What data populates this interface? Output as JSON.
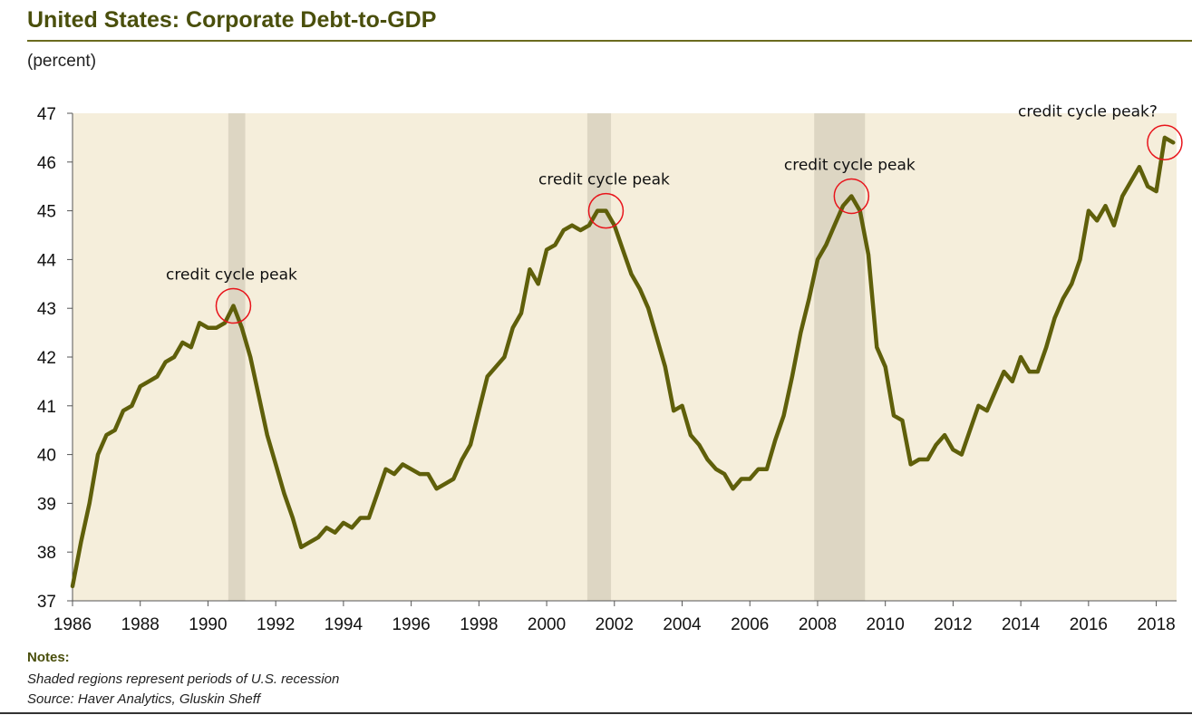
{
  "title": "United States: Corporate Debt-to-GDP",
  "subtitle": "(percent)",
  "notes": {
    "heading": "Notes:",
    "line1": "Shaded regions represent periods of U.S. recession",
    "line2": "Source: Haver Analytics, Gluskin Sheff"
  },
  "colors": {
    "line": "#5f5f0a",
    "plot_bg": "#f5eedb",
    "recession": "#ddd6c3",
    "annotation_circle": "#e8141b",
    "title": "#4a4f0c"
  },
  "chart_data": {
    "type": "line",
    "title": "United States: Corporate Debt-to-GDP",
    "ylabel": "(percent)",
    "xlabel": "",
    "xlim": [
      1986,
      2018.6
    ],
    "ylim": [
      37,
      47
    ],
    "x_ticks": [
      "1986",
      "1988",
      "1990",
      "1992",
      "1994",
      "1996",
      "1998",
      "2000",
      "2002",
      "2004",
      "2006",
      "2008",
      "2010",
      "2012",
      "2014",
      "2016",
      "2018"
    ],
    "y_ticks": [
      "37",
      "38",
      "39",
      "40",
      "41",
      "42",
      "43",
      "44",
      "45",
      "46",
      "47"
    ],
    "recessions": [
      [
        1990.6,
        1991.1
      ],
      [
        2001.2,
        2001.9
      ],
      [
        2007.9,
        2009.4
      ]
    ],
    "annotations": [
      {
        "text": "credit cycle peak",
        "x": 1990.75,
        "y": 43.05
      },
      {
        "text": "credit cycle peak",
        "x": 2001.75,
        "y": 45.0
      },
      {
        "text": "credit cycle peak",
        "x": 2009.0,
        "y": 45.3
      },
      {
        "text": "credit cycle peak?",
        "x": 2018.25,
        "y": 46.4
      }
    ],
    "series": [
      {
        "name": "Corporate Debt-to-GDP",
        "x": [
          1986.0,
          1986.25,
          1986.5,
          1986.75,
          1987.0,
          1987.25,
          1987.5,
          1987.75,
          1988.0,
          1988.25,
          1988.5,
          1988.75,
          1989.0,
          1989.25,
          1989.5,
          1989.75,
          1990.0,
          1990.25,
          1990.5,
          1990.75,
          1991.0,
          1991.25,
          1991.5,
          1991.75,
          1992.0,
          1992.25,
          1992.5,
          1992.75,
          1993.0,
          1993.25,
          1993.5,
          1993.75,
          1994.0,
          1994.25,
          1994.5,
          1994.75,
          1995.0,
          1995.25,
          1995.5,
          1995.75,
          1996.0,
          1996.25,
          1996.5,
          1996.75,
          1997.0,
          1997.25,
          1997.5,
          1997.75,
          1998.0,
          1998.25,
          1998.5,
          1998.75,
          1999.0,
          1999.25,
          1999.5,
          1999.75,
          2000.0,
          2000.25,
          2000.5,
          2000.75,
          2001.0,
          2001.25,
          2001.5,
          2001.75,
          2002.0,
          2002.25,
          2002.5,
          2002.75,
          2003.0,
          2003.25,
          2003.5,
          2003.75,
          2004.0,
          2004.25,
          2004.5,
          2004.75,
          2005.0,
          2005.25,
          2005.5,
          2005.75,
          2006.0,
          2006.25,
          2006.5,
          2006.75,
          2007.0,
          2007.25,
          2007.5,
          2007.75,
          2008.0,
          2008.25,
          2008.5,
          2008.75,
          2009.0,
          2009.25,
          2009.5,
          2009.75,
          2010.0,
          2010.25,
          2010.5,
          2010.75,
          2011.0,
          2011.25,
          2011.5,
          2011.75,
          2012.0,
          2012.25,
          2012.5,
          2012.75,
          2013.0,
          2013.25,
          2013.5,
          2013.75,
          2014.0,
          2014.25,
          2014.5,
          2014.75,
          2015.0,
          2015.25,
          2015.5,
          2015.75,
          2016.0,
          2016.25,
          2016.5,
          2016.75,
          2017.0,
          2017.25,
          2017.5,
          2017.75,
          2018.0,
          2018.25,
          2018.5
        ],
        "values": [
          37.3,
          38.2,
          39.0,
          40.0,
          40.4,
          40.5,
          40.9,
          41.0,
          41.4,
          41.5,
          41.6,
          41.9,
          42.0,
          42.3,
          42.2,
          42.7,
          42.6,
          42.6,
          42.7,
          43.05,
          42.6,
          42.0,
          41.2,
          40.4,
          39.8,
          39.2,
          38.7,
          38.1,
          38.2,
          38.3,
          38.5,
          38.4,
          38.6,
          38.5,
          38.7,
          38.7,
          39.2,
          39.7,
          39.6,
          39.8,
          39.7,
          39.6,
          39.6,
          39.3,
          39.4,
          39.5,
          39.9,
          40.2,
          40.9,
          41.6,
          41.8,
          42.0,
          42.6,
          42.9,
          43.8,
          43.5,
          44.2,
          44.3,
          44.6,
          44.7,
          44.6,
          44.7,
          45.0,
          45.0,
          44.7,
          44.2,
          43.7,
          43.4,
          43.0,
          42.4,
          41.8,
          40.9,
          41.0,
          40.4,
          40.2,
          39.9,
          39.7,
          39.6,
          39.3,
          39.5,
          39.5,
          39.7,
          39.7,
          40.3,
          40.8,
          41.6,
          42.5,
          43.2,
          44.0,
          44.3,
          44.7,
          45.1,
          45.3,
          45.0,
          44.1,
          42.2,
          41.8,
          40.8,
          40.7,
          39.8,
          39.9,
          39.9,
          40.2,
          40.4,
          40.1,
          40.0,
          40.5,
          41.0,
          40.9,
          41.3,
          41.7,
          41.5,
          42.0,
          41.7,
          41.7,
          42.2,
          42.8,
          43.2,
          43.5,
          44.0,
          45.0,
          44.8,
          45.1,
          44.7,
          45.3,
          45.6,
          45.9,
          45.5,
          45.4,
          46.5,
          46.4
        ]
      }
    ]
  }
}
